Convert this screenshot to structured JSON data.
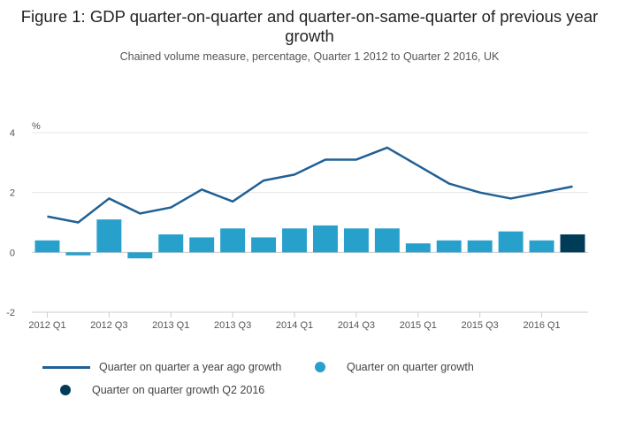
{
  "chart_data": {
    "type": "bar",
    "title": "Figure 1: GDP quarter-on-quarter and quarter-on-same-quarter of previous year growth",
    "subtitle": "Chained volume measure, percentage, Quarter 1 2012 to Quarter 2 2016, UK",
    "ylabel": "%",
    "ylim": [
      -2,
      4
    ],
    "yticks": [
      4,
      2,
      0,
      -2
    ],
    "xtick_labels": [
      "2012 Q1",
      "2012 Q3",
      "2013 Q1",
      "2013 Q3",
      "2014 Q1",
      "2014 Q3",
      "2015 Q1",
      "2015 Q3",
      "2016 Q1"
    ],
    "categories": [
      "2012 Q1",
      "2012 Q2",
      "2012 Q3",
      "2012 Q4",
      "2013 Q1",
      "2013 Q2",
      "2013 Q3",
      "2013 Q4",
      "2014 Q1",
      "2014 Q2",
      "2014 Q3",
      "2014 Q4",
      "2015 Q1",
      "2015 Q2",
      "2015 Q3",
      "2015 Q4",
      "2016 Q1",
      "2016 Q2"
    ],
    "series": [
      {
        "name": "Quarter on quarter a year ago growth",
        "kind": "line",
        "color": "#206095",
        "values": [
          1.2,
          1.0,
          1.8,
          1.3,
          1.5,
          2.1,
          1.7,
          2.4,
          2.6,
          3.1,
          3.1,
          3.5,
          2.9,
          2.3,
          2.0,
          1.8,
          2.0,
          2.2
        ]
      },
      {
        "name": "Quarter on quarter growth",
        "kind": "bar",
        "color": "#27A0CC",
        "values": [
          0.4,
          -0.1,
          1.1,
          -0.2,
          0.6,
          0.5,
          0.8,
          0.5,
          0.8,
          0.9,
          0.8,
          0.8,
          0.3,
          0.4,
          0.4,
          0.7,
          0.4,
          null
        ]
      },
      {
        "name": "Quarter on quarter growth Q2 2016",
        "kind": "bar",
        "color": "#003C57",
        "values": [
          null,
          null,
          null,
          null,
          null,
          null,
          null,
          null,
          null,
          null,
          null,
          null,
          null,
          null,
          null,
          null,
          null,
          0.6
        ]
      }
    ],
    "legend": [
      "Quarter on quarter a year ago growth",
      "Quarter on quarter growth",
      "Quarter on quarter growth Q2 2016"
    ]
  }
}
